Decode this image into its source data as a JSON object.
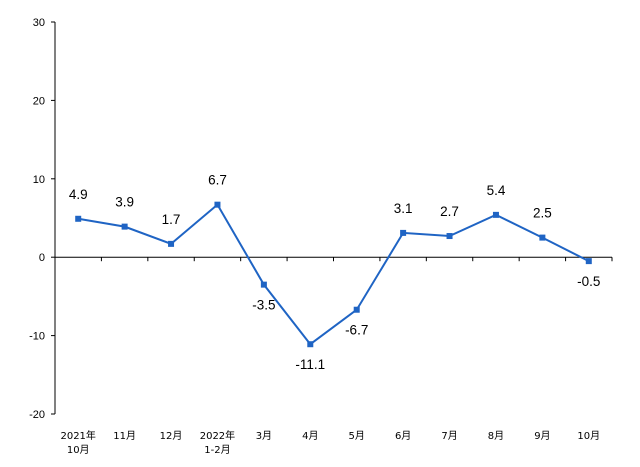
{
  "chart_data": {
    "type": "line",
    "categories": [
      [
        "2021年",
        "10月"
      ],
      [
        "11月"
      ],
      [
        "12月"
      ],
      [
        "2022年",
        "1-2月"
      ],
      [
        "3月"
      ],
      [
        "4月"
      ],
      [
        "5月"
      ],
      [
        "6月"
      ],
      [
        "7月"
      ],
      [
        "8月"
      ],
      [
        "9月"
      ],
      [
        "10月"
      ]
    ],
    "series": [
      {
        "values": [
          4.9,
          3.9,
          1.7,
          6.7,
          -3.5,
          -11.1,
          -6.7,
          3.1,
          2.7,
          5.4,
          2.5,
          -0.5
        ],
        "labels": [
          "4.9",
          "3.9",
          "1.7",
          "6.7",
          "-3.5",
          "-11.1",
          "-6.7",
          "3.1",
          "2.7",
          "5.4",
          "2.5",
          "-0.5"
        ],
        "color": "#1f64c4"
      }
    ],
    "ylim": [
      -20,
      30
    ],
    "yticks": [
      "30",
      "20",
      "10",
      "0",
      "-10",
      "-20"
    ],
    "ytick_values": [
      30,
      20,
      10,
      0,
      -10,
      -20
    ],
    "grid": false,
    "legend": "none",
    "title": "",
    "xlabel": "",
    "ylabel": ""
  }
}
